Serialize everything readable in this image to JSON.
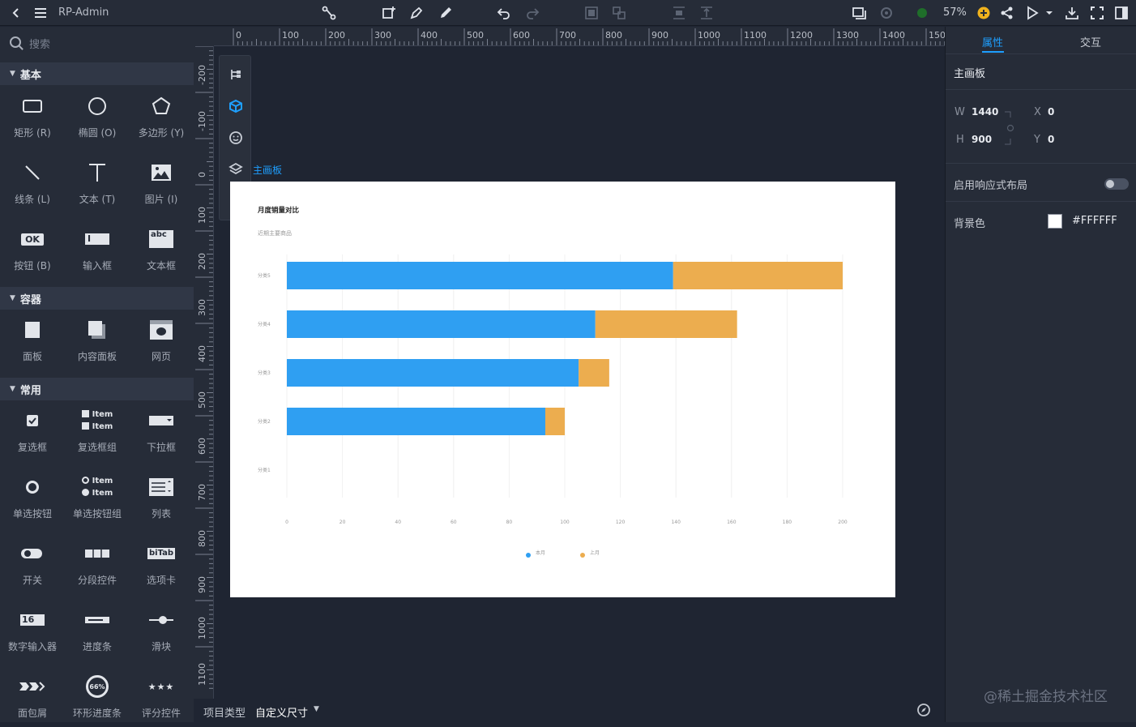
{
  "app": {
    "title": "RP-Admin",
    "zoom": "57%"
  },
  "search": {
    "placeholder": "搜索"
  },
  "sections": {
    "basic": "基本",
    "container": "容器",
    "common": "常用"
  },
  "widgets": {
    "rect": "矩形 (R)",
    "ellipse": "椭圆 (O)",
    "polygon": "多边形 (Y)",
    "line": "线条 (L)",
    "text": "文本 (T)",
    "image": "图片 (I)",
    "button": "按钮 (B)",
    "input": "输入框",
    "textbox": "文本框",
    "panel": "面板",
    "content_panel": "内容面板",
    "webpage": "网页",
    "checkbox": "复选框",
    "checkbox_group": "复选框组",
    "dropdown": "下拉框",
    "radio": "单选按钮",
    "radio_group": "单选按钮组",
    "list": "列表",
    "switch": "开关",
    "segmented": "分段控件",
    "tabs": "选项卡",
    "number_input": "数字输入器",
    "progress": "进度条",
    "slider": "滑块",
    "breadcrumb": "面包屑",
    "ring_progress": "环形进度条",
    "rating": "评分控件",
    "icon_text": {
      "ok": "OK",
      "input_cursor": "I",
      "textbox_abc": "abc",
      "item1": "Item",
      "item2": "Item",
      "radio_item1": "Item",
      "radio_item2": "Item",
      "tab": "biTab",
      "num": "16",
      "ring": "66%"
    }
  },
  "ruler": {
    "top": [
      "0",
      "100",
      "200",
      "300",
      "400",
      "500",
      "600",
      "700",
      "800",
      "900",
      "1000",
      "1100",
      "1200",
      "1300",
      "1400",
      "150"
    ],
    "left": [
      "-200",
      "-100",
      "0",
      "100",
      "200",
      "300",
      "400",
      "500",
      "600",
      "700",
      "800",
      "900",
      "1000",
      "1100"
    ]
  },
  "canvas": {
    "artboard_label": "主画板"
  },
  "chart_data": {
    "type": "bar",
    "orientation": "horizontal",
    "stacked": true,
    "title": "月度销量对比",
    "subtitle": "近期主要商品",
    "categories": [
      "分类5",
      "分类4",
      "分类3",
      "分类2",
      "分类1"
    ],
    "series": [
      {
        "name": "本月",
        "color": "#2f9ff2",
        "values": [
          139,
          111,
          105,
          93,
          0
        ]
      },
      {
        "name": "上月",
        "color": "#ecad4f",
        "values": [
          61,
          51,
          11,
          7,
          0
        ]
      }
    ],
    "xticks": [
      "0",
      "20",
      "40",
      "60",
      "80",
      "100",
      "120",
      "140",
      "160",
      "180",
      "200"
    ],
    "xlim": [
      0,
      200
    ],
    "grid": true,
    "legend_position": "bottom"
  },
  "status": {
    "type_label": "项目类型",
    "type_value": "自定义尺寸"
  },
  "right": {
    "tab_props": "属性",
    "tab_interact": "交互",
    "board_title": "主画板",
    "w_label": "W",
    "w_value": "1440",
    "h_label": "H",
    "h_value": "900",
    "x_label": "X",
    "x_value": "0",
    "y_label": "Y",
    "y_value": "0",
    "responsive_label": "启用响应式布局",
    "bg_label": "背景色",
    "bg_value": "#FFFFFF"
  },
  "watermark": "@稀土掘金技术社区",
  "colors": {
    "accent": "#1e9fff",
    "panel": "#262c38",
    "canvas": "#1f2532"
  }
}
